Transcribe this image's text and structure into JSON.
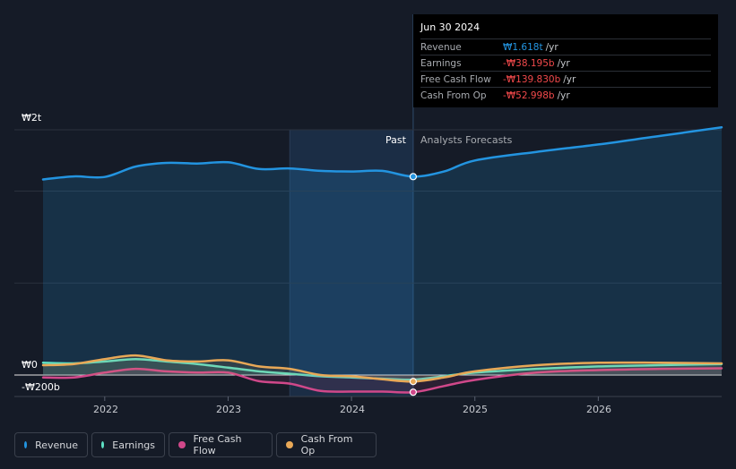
{
  "tooltip": {
    "date": "Jun 30 2024",
    "rows": [
      {
        "label": "Revenue",
        "value": "₩1.618t",
        "unit": "/yr",
        "color": "#2394e0"
      },
      {
        "label": "Earnings",
        "value": "-₩38.195b",
        "unit": "/yr",
        "color": "#f2494b"
      },
      {
        "label": "Free Cash Flow",
        "value": "-₩139.830b",
        "unit": "/yr",
        "color": "#f2494b"
      },
      {
        "label": "Cash From Op",
        "value": "-₩52.998b",
        "unit": "/yr",
        "color": "#f2494b"
      }
    ]
  },
  "labels": {
    "past": "Past",
    "forecast": "Analysts Forecasts"
  },
  "legend": [
    {
      "label": "Revenue",
      "color": "#2394e0"
    },
    {
      "label": "Earnings",
      "color": "#5ee0c4"
    },
    {
      "label": "Free Cash Flow",
      "color": "#d0488a"
    },
    {
      "label": "Cash From Op",
      "color": "#e8a857"
    }
  ],
  "chart_data": {
    "type": "line",
    "title": "",
    "y_axis_labels": {
      "top": "₩2t",
      "zero": "₩0",
      "bottom": "-₩200b"
    },
    "ylim": [
      -200,
      2000
    ],
    "y_unit": "₩b",
    "xlim": [
      2021.5,
      2027.0
    ],
    "x_ticks": [
      2022,
      2023,
      2024,
      2025,
      2026
    ],
    "x_tick_labels": [
      "2022",
      "2023",
      "2024",
      "2025",
      "2026"
    ],
    "highlight_range": [
      2023.5,
      2024.5
    ],
    "current_date": 2024.5,
    "series": [
      {
        "name": "Revenue",
        "color": "#2394e0",
        "x": [
          2021.5,
          2021.75,
          2022.0,
          2022.25,
          2022.5,
          2022.75,
          2023.0,
          2023.25,
          2023.5,
          2023.75,
          2024.0,
          2024.25,
          2024.5,
          2024.75,
          2025.0,
          2025.5,
          2026.0,
          2026.5,
          2027.0
        ],
        "values": [
          1595,
          1620,
          1615,
          1700,
          1730,
          1725,
          1735,
          1680,
          1685,
          1665,
          1660,
          1665,
          1618,
          1660,
          1750,
          1820,
          1880,
          1950,
          2020
        ]
      },
      {
        "name": "Earnings",
        "color": "#5ee0c4",
        "x": [
          2021.5,
          2021.75,
          2022.0,
          2022.25,
          2022.5,
          2022.75,
          2023.0,
          2023.25,
          2023.5,
          2023.75,
          2024.0,
          2024.25,
          2024.5,
          2024.75,
          2025.0,
          2025.5,
          2026.0,
          2026.5,
          2027.0
        ],
        "values": [
          100,
          95,
          110,
          130,
          110,
          90,
          60,
          30,
          10,
          -10,
          -20,
          -30,
          -38,
          -10,
          20,
          50,
          70,
          80,
          90
        ]
      },
      {
        "name": "Free Cash Flow",
        "color": "#d0488a",
        "x": [
          2021.5,
          2021.75,
          2022.0,
          2022.25,
          2022.5,
          2022.75,
          2023.0,
          2023.25,
          2023.5,
          2023.75,
          2024.0,
          2024.25,
          2024.5,
          2024.75,
          2025.0,
          2025.5,
          2026.0,
          2026.5,
          2027.0
        ],
        "values": [
          -20,
          -20,
          20,
          50,
          30,
          20,
          20,
          -50,
          -70,
          -130,
          -135,
          -135,
          -140,
          -90,
          -40,
          20,
          40,
          50,
          55
        ]
      },
      {
        "name": "Cash From Op",
        "color": "#e8a857",
        "x": [
          2021.5,
          2021.75,
          2022.0,
          2022.25,
          2022.5,
          2022.75,
          2023.0,
          2023.25,
          2023.5,
          2023.75,
          2024.0,
          2024.25,
          2024.5,
          2024.75,
          2025.0,
          2025.5,
          2026.0,
          2026.5,
          2027.0
        ],
        "values": [
          80,
          90,
          130,
          160,
          120,
          110,
          120,
          70,
          50,
          0,
          -10,
          -35,
          -53,
          -20,
          30,
          80,
          100,
          100,
          95
        ]
      }
    ]
  }
}
